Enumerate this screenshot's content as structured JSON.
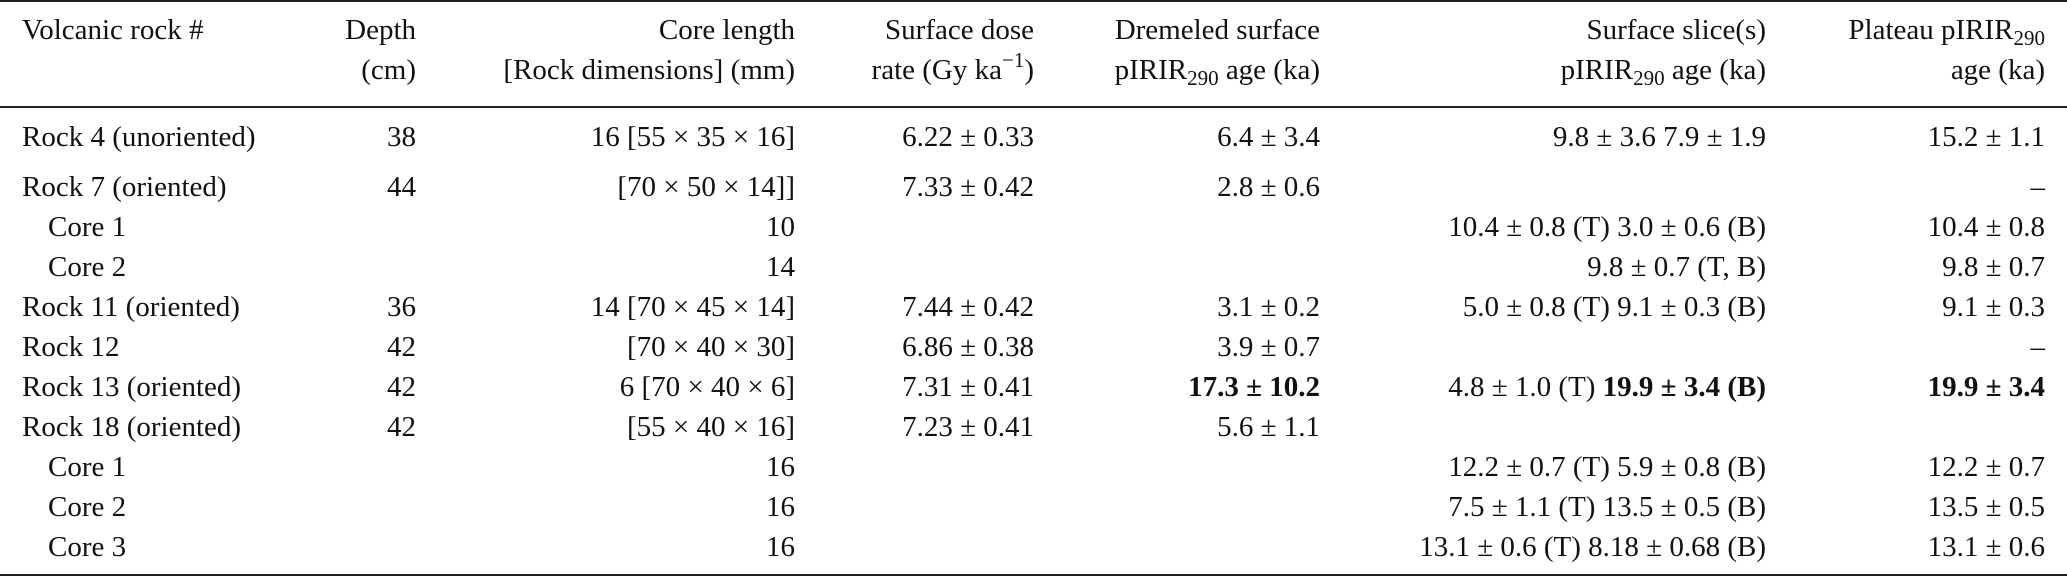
{
  "table": {
    "headers": [
      {
        "line1": "Volcanic rock #",
        "line2": ""
      },
      {
        "line1": "Depth",
        "line2": "(cm)"
      },
      {
        "line1": "Core length",
        "line2": "[Rock dimensions] (mm)"
      },
      {
        "line1": "Surface dose",
        "line2_pre": "rate (Gy ka",
        "line2_sup": "−1",
        "line2_post": ")"
      },
      {
        "line1": "Dremeled surface",
        "line2_pre": "pIRIR",
        "line2_sub": "290",
        "line2_post": " age (ka)"
      },
      {
        "line1": "Surface slice(s)",
        "line2_pre": "pIRIR",
        "line2_sub": "290",
        "line2_post": " age (ka)"
      },
      {
        "line1_pre": "Plateau pIRIR",
        "line1_sub": "290",
        "line2": "age (ka)"
      }
    ],
    "rows": [
      {
        "rock": "Rock 4 (unoriented)",
        "depth": "38",
        "core": "16 [55 × 35 × 16]",
        "dose": "6.22 ± 0.33",
        "dremeled": "6.4 ± 3.4",
        "slice": "9.8 ± 3.6 7.9 ± 1.9",
        "plateau": "15.2 ± 1.1"
      },
      {
        "rock": "Rock 7 (oriented)",
        "depth": "44",
        "core": "[70 × 50 × 14]]",
        "dose": "7.33 ± 0.42",
        "dremeled": "2.8 ± 0.6",
        "slice": "",
        "plateau": "–"
      },
      {
        "rock": "Core 1",
        "depth": "",
        "core": "10",
        "dose": "",
        "dremeled": "",
        "slice": "10.4 ± 0.8 (T) 3.0 ± 0.6 (B)",
        "plateau": "10.4 ± 0.8"
      },
      {
        "rock": "Core 2",
        "depth": "",
        "core": "14",
        "dose": "",
        "dremeled": "",
        "slice": "9.8 ± 0.7 (T, B)",
        "plateau": "9.8 ± 0.7"
      },
      {
        "rock": "Rock 11 (oriented)",
        "depth": "36",
        "core": "14 [70 × 45 × 14]",
        "dose": "7.44 ± 0.42",
        "dremeled": "3.1 ± 0.2",
        "slice": "5.0 ± 0.8 (T) 9.1 ± 0.3 (B)",
        "plateau": "9.1 ± 0.3"
      },
      {
        "rock": "Rock 12",
        "depth": "42",
        "core": "[70 × 40 × 30]",
        "dose": "6.86 ± 0.38",
        "dremeled": "3.9 ± 0.7",
        "slice": "",
        "plateau": "–"
      },
      {
        "rock": "Rock 13 (oriented)",
        "depth": "42",
        "core": "6 [70 × 40 × 6]",
        "dose": "7.31 ± 0.41",
        "dremeled_bold": "17.3 ± 10.2",
        "slice_pre": "4.8 ± 1.0 (T) ",
        "slice_bold": "19.9 ± 3.4 (B)",
        "plateau_bold": "19.9 ± 3.4"
      },
      {
        "rock": "Rock 18 (oriented)",
        "depth": "42",
        "core": "[55 × 40 × 16]",
        "dose": "7.23 ± 0.41",
        "dremeled": "5.6 ± 1.1",
        "slice": "",
        "plateau": ""
      },
      {
        "rock": "Core 1",
        "depth": "",
        "core": "16",
        "dose": "",
        "dremeled": "",
        "slice": "12.2 ± 0.7 (T) 5.9 ± 0.8 (B)",
        "plateau": "12.2 ± 0.7"
      },
      {
        "rock": "Core 2",
        "depth": "",
        "core": "16",
        "dose": "",
        "dremeled": "",
        "slice": "7.5 ± 1.1 (T) 13.5 ± 0.5 (B)",
        "plateau": "13.5 ± 0.5"
      },
      {
        "rock": "Core 3",
        "depth": "",
        "core": "16",
        "dose": "",
        "dremeled": "",
        "slice": "13.1 ± 0.6 (T) 8.18 ± 0.68 (B)",
        "plateau": "13.1 ± 0.6"
      }
    ]
  }
}
